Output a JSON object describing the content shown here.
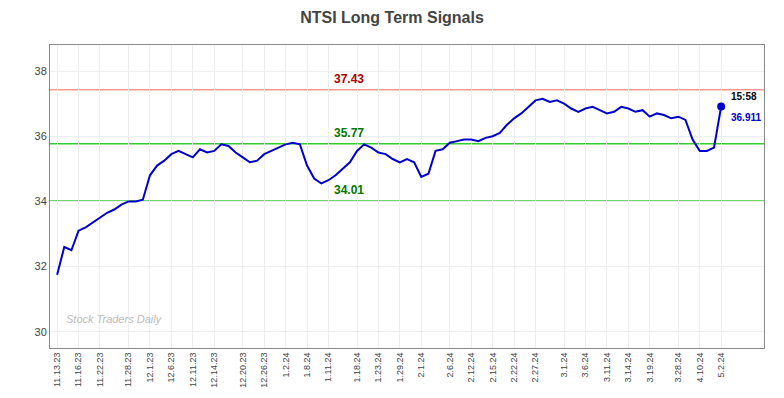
{
  "chart_data": {
    "type": "line",
    "title": "NTSI Long Term Signals",
    "categories": [
      "11.13.23",
      null,
      null,
      "11.16.23",
      null,
      null,
      "11.22.23",
      null,
      null,
      null,
      "11.28.23",
      null,
      null,
      "12.1.23",
      null,
      null,
      "12.6.23",
      null,
      null,
      "12.11.23",
      null,
      null,
      "12.14.23",
      null,
      null,
      null,
      "12.20.23",
      null,
      null,
      "12.26.23",
      null,
      null,
      "1.2.24",
      null,
      null,
      "1.8.24",
      null,
      null,
      "1.11.24",
      null,
      null,
      null,
      "1.18.24",
      null,
      null,
      "1.23.24",
      null,
      null,
      "1.29.24",
      null,
      null,
      "2.1.24",
      null,
      null,
      null,
      "2.6.24",
      null,
      null,
      "2.12.24",
      null,
      null,
      "2.15.24",
      null,
      null,
      "2.22.24",
      null,
      null,
      "2.27.24",
      null,
      null,
      null,
      "3.1.24",
      null,
      null,
      "3.6.24",
      null,
      null,
      "3.11.24",
      null,
      null,
      "3.14.24",
      null,
      null,
      "3.19.24",
      null,
      null,
      null,
      "3.28.24",
      null,
      null,
      "4.10.24",
      null,
      null,
      "5.2.24"
    ],
    "values": [
      31.75,
      32.6,
      32.5,
      33.1,
      33.2,
      33.35,
      33.5,
      33.65,
      33.75,
      33.9,
      34.0,
      34.0,
      34.05,
      34.8,
      35.1,
      35.25,
      35.45,
      35.55,
      35.45,
      35.35,
      35.6,
      35.5,
      35.55,
      35.75,
      35.7,
      35.5,
      35.35,
      35.2,
      35.25,
      35.45,
      35.55,
      35.65,
      35.75,
      35.8,
      35.75,
      35.1,
      34.7,
      34.55,
      34.65,
      34.8,
      35.0,
      35.2,
      35.55,
      35.75,
      35.65,
      35.5,
      35.45,
      35.3,
      35.2,
      35.3,
      35.2,
      34.75,
      34.85,
      35.55,
      35.6,
      35.8,
      35.85,
      35.9,
      35.9,
      35.85,
      35.95,
      36.0,
      36.1,
      36.35,
      36.55,
      36.7,
      36.9,
      37.1,
      37.15,
      37.05,
      37.1,
      37.0,
      36.85,
      36.75,
      36.85,
      36.9,
      36.8,
      36.7,
      36.75,
      36.9,
      36.85,
      36.75,
      36.8,
      36.6,
      36.7,
      36.65,
      36.55,
      36.6,
      36.5,
      35.9,
      35.55,
      35.55,
      35.65,
      36.911
    ],
    "color": "#0000cc",
    "ylim": [
      29.5,
      38.8
    ],
    "yticks": [
      30,
      32,
      34,
      36,
      38
    ],
    "grid": true,
    "annotations": [
      {
        "text": "37.43",
        "y": 37.43,
        "color": "#aa0000",
        "line_color": "#ff9999"
      },
      {
        "text": "35.77",
        "y": 35.77,
        "color": "#007700",
        "line_color": "#33cc33"
      },
      {
        "text": "34.01",
        "y": 34.01,
        "color": "#007700",
        "line_color": "#33cc33"
      }
    ],
    "last_point_labels": [
      {
        "text": "15:58",
        "color": "#000000"
      },
      {
        "text": "36.911",
        "color": "#0000cc"
      }
    ],
    "watermark": {
      "text": "Stock Traders Daily",
      "color": "#bbbbbb"
    }
  }
}
